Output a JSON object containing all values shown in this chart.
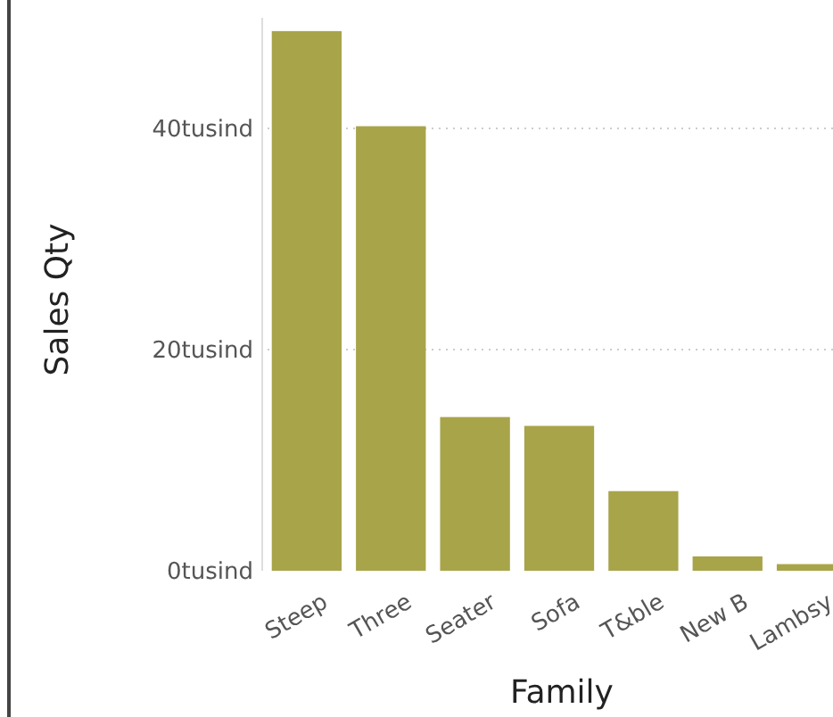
{
  "chart_data": {
    "type": "bar",
    "xlabel": "Family",
    "ylabel": "Sales Qty",
    "categories": [
      "Steep",
      "Three",
      "Seater",
      "Sofa",
      "T&ble",
      "New B",
      "Lambsy"
    ],
    "values": [
      48.8,
      40.2,
      13.9,
      13.1,
      7.2,
      1.3,
      0.6
    ],
    "color": "#a8a44a",
    "ylim": [
      0,
      50
    ],
    "yticks": [
      {
        "value": 0,
        "label": "0tusind"
      },
      {
        "value": 20,
        "label": "20tusind"
      },
      {
        "value": 40,
        "label": "40tusind"
      }
    ],
    "grid": "y"
  }
}
